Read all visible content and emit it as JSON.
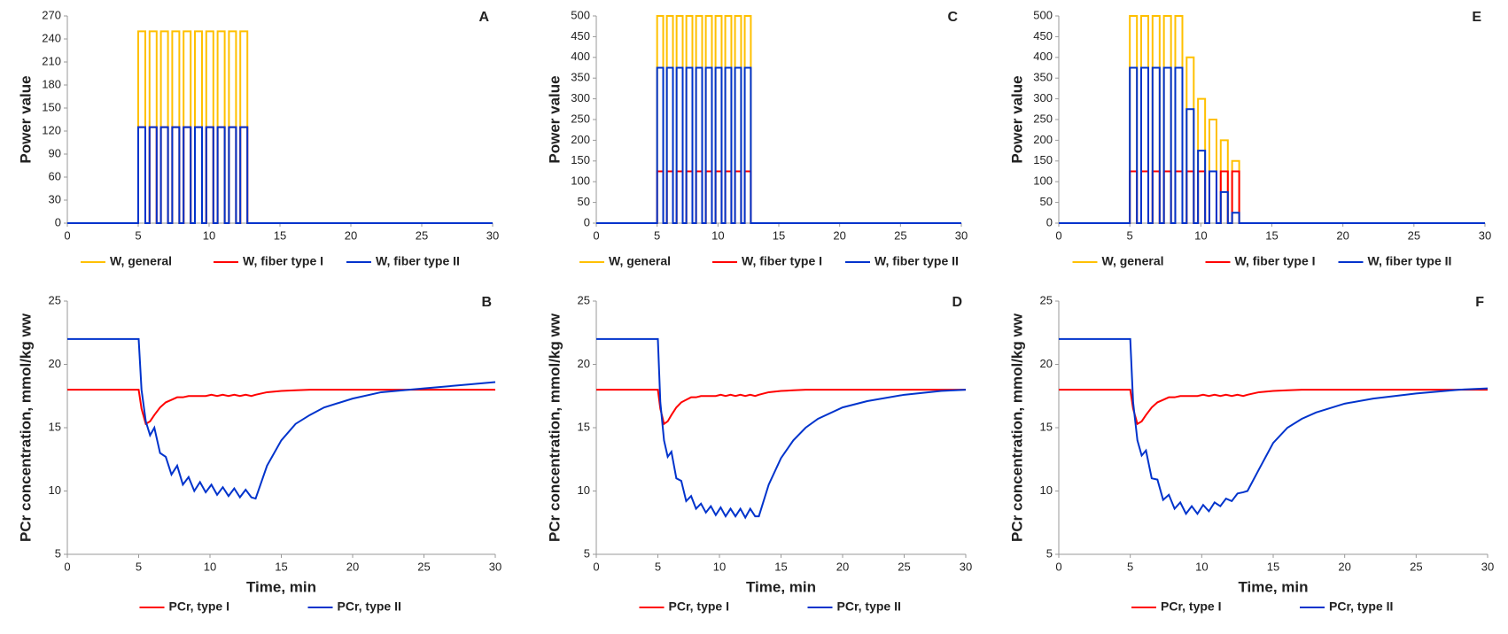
{
  "chart_data": [
    {
      "type": "line",
      "panel_label": "A",
      "ylabel": "Power value",
      "x": [
        0,
        5,
        5,
        5.5,
        5.5,
        5.8,
        5.8,
        6.3,
        6.3,
        6.6,
        6.6,
        7.1,
        7.1,
        7.4,
        7.4,
        7.9,
        7.9,
        8.2,
        8.2,
        8.7,
        8.7,
        9,
        9,
        9.5,
        9.5,
        9.8,
        9.8,
        10.3,
        10.3,
        10.6,
        10.6,
        11.1,
        11.1,
        11.4,
        11.4,
        11.9,
        11.9,
        12.2,
        12.2,
        12.7,
        12.7,
        30
      ],
      "series": [
        {
          "name": "W, general",
          "color": "#ffc000",
          "values": [
            0,
            0,
            250,
            250,
            0,
            0,
            250,
            250,
            0,
            0,
            250,
            250,
            0,
            0,
            250,
            250,
            0,
            0,
            250,
            250,
            0,
            0,
            250,
            250,
            0,
            0,
            250,
            250,
            0,
            0,
            250,
            250,
            0,
            0,
            250,
            250,
            0,
            0,
            250,
            250,
            0,
            0
          ]
        },
        {
          "name": "W, fiber type I",
          "color": "#ff0000",
          "values": [
            0,
            0,
            125,
            125,
            0,
            0,
            125,
            125,
            0,
            0,
            125,
            125,
            0,
            0,
            125,
            125,
            0,
            0,
            125,
            125,
            0,
            0,
            125,
            125,
            0,
            0,
            125,
            125,
            0,
            0,
            125,
            125,
            0,
            0,
            125,
            125,
            0,
            0,
            125,
            125,
            0,
            0
          ]
        },
        {
          "name": "W, fiber type II",
          "color": "#0033cc",
          "values": [
            0,
            0,
            125,
            125,
            0,
            0,
            125,
            125,
            0,
            0,
            125,
            125,
            0,
            0,
            125,
            125,
            0,
            0,
            125,
            125,
            0,
            0,
            125,
            125,
            0,
            0,
            125,
            125,
            0,
            0,
            125,
            125,
            0,
            0,
            125,
            125,
            0,
            0,
            125,
            125,
            0,
            0
          ]
        }
      ],
      "xlim": [
        0,
        30
      ],
      "ylim": [
        0,
        270
      ],
      "xticks": [
        0,
        5,
        10,
        15,
        20,
        25,
        30
      ],
      "yticks": [
        0,
        30,
        60,
        90,
        120,
        150,
        180,
        210,
        240,
        270
      ]
    },
    {
      "type": "line",
      "panel_label": "B",
      "ylabel": "PCr concentration, mmol/kg ww",
      "xlabel": "Time, min",
      "x": [
        0,
        5,
        5.2,
        5.5,
        5.8,
        6.1,
        6.5,
        6.9,
        7.3,
        7.7,
        8.1,
        8.5,
        8.9,
        9.3,
        9.7,
        10.1,
        10.5,
        10.9,
        11.3,
        11.7,
        12.1,
        12.5,
        12.9,
        13.2,
        14,
        15,
        16,
        17,
        18,
        20,
        22,
        25,
        28,
        30
      ],
      "series": [
        {
          "name": "PCr, type I",
          "color": "#ff0000",
          "values": [
            18,
            18,
            16.5,
            15.3,
            15.5,
            16,
            16.6,
            17,
            17.2,
            17.4,
            17.4,
            17.5,
            17.5,
            17.5,
            17.5,
            17.6,
            17.5,
            17.6,
            17.5,
            17.6,
            17.5,
            17.6,
            17.5,
            17.6,
            17.8,
            17.9,
            17.95,
            18,
            18,
            18,
            18,
            18,
            18,
            18
          ]
        },
        {
          "name": "PCr, type II",
          "color": "#0033cc",
          "values": [
            22,
            22,
            18,
            15.5,
            14.4,
            15,
            13,
            12.7,
            11.3,
            12,
            10.5,
            11.1,
            10,
            10.7,
            9.9,
            10.5,
            9.7,
            10.3,
            9.6,
            10.2,
            9.5,
            10.1,
            9.5,
            9.4,
            12,
            14,
            15.3,
            16,
            16.6,
            17.3,
            17.8,
            18.1,
            18.4,
            18.6
          ]
        }
      ],
      "xlim": [
        0,
        30
      ],
      "ylim": [
        5,
        25
      ],
      "xticks": [
        0,
        5,
        10,
        15,
        20,
        25,
        30
      ],
      "yticks": [
        5,
        10,
        15,
        20,
        25
      ]
    },
    {
      "type": "line",
      "panel_label": "C",
      "ylabel": "Power value",
      "x": [
        0,
        5,
        5,
        5.5,
        5.5,
        5.8,
        5.8,
        6.3,
        6.3,
        6.6,
        6.6,
        7.1,
        7.1,
        7.4,
        7.4,
        7.9,
        7.9,
        8.2,
        8.2,
        8.7,
        8.7,
        9,
        9,
        9.5,
        9.5,
        9.8,
        9.8,
        10.3,
        10.3,
        10.6,
        10.6,
        11.1,
        11.1,
        11.4,
        11.4,
        11.9,
        11.9,
        12.2,
        12.2,
        12.7,
        12.7,
        30
      ],
      "series": [
        {
          "name": "W, general",
          "color": "#ffc000",
          "values": [
            0,
            0,
            500,
            500,
            0,
            0,
            500,
            500,
            0,
            0,
            500,
            500,
            0,
            0,
            500,
            500,
            0,
            0,
            500,
            500,
            0,
            0,
            500,
            500,
            0,
            0,
            500,
            500,
            0,
            0,
            500,
            500,
            0,
            0,
            500,
            500,
            0,
            0,
            500,
            500,
            0,
            0
          ]
        },
        {
          "name": "W, fiber type I",
          "color": "#ff0000",
          "values": [
            0,
            0,
            125,
            125,
            0,
            0,
            125,
            125,
            0,
            0,
            125,
            125,
            0,
            0,
            125,
            125,
            0,
            0,
            125,
            125,
            0,
            0,
            125,
            125,
            0,
            0,
            125,
            125,
            0,
            0,
            125,
            125,
            0,
            0,
            125,
            125,
            0,
            0,
            125,
            125,
            0,
            0
          ]
        },
        {
          "name": "W, fiber type II",
          "color": "#0033cc",
          "values": [
            0,
            0,
            375,
            375,
            0,
            0,
            375,
            375,
            0,
            0,
            375,
            375,
            0,
            0,
            375,
            375,
            0,
            0,
            375,
            375,
            0,
            0,
            375,
            375,
            0,
            0,
            375,
            375,
            0,
            0,
            375,
            375,
            0,
            0,
            375,
            375,
            0,
            0,
            375,
            375,
            0,
            0
          ]
        }
      ],
      "xlim": [
        0,
        30
      ],
      "ylim": [
        0,
        500
      ],
      "xticks": [
        0,
        5,
        10,
        15,
        20,
        25,
        30
      ],
      "yticks": [
        0,
        50,
        100,
        150,
        200,
        250,
        300,
        350,
        400,
        450,
        500
      ]
    },
    {
      "type": "line",
      "panel_label": "D",
      "ylabel": "PCr concentration, mmol/kg ww",
      "xlabel": "Time, min",
      "x": [
        0,
        5,
        5.2,
        5.5,
        5.8,
        6.1,
        6.5,
        6.9,
        7.3,
        7.7,
        8.1,
        8.5,
        8.9,
        9.3,
        9.7,
        10.1,
        10.5,
        10.9,
        11.3,
        11.7,
        12.1,
        12.5,
        12.9,
        13.2,
        14,
        15,
        16,
        17,
        18,
        20,
        22,
        25,
        28,
        30
      ],
      "series": [
        {
          "name": "PCr, type I",
          "color": "#ff0000",
          "values": [
            18,
            18,
            16.5,
            15.3,
            15.5,
            16,
            16.6,
            17,
            17.2,
            17.4,
            17.4,
            17.5,
            17.5,
            17.5,
            17.5,
            17.6,
            17.5,
            17.6,
            17.5,
            17.6,
            17.5,
            17.6,
            17.5,
            17.6,
            17.8,
            17.9,
            17.95,
            18,
            18,
            18,
            18,
            18,
            18,
            18
          ]
        },
        {
          "name": "PCr, type II",
          "color": "#0033cc",
          "values": [
            22,
            22,
            17,
            14,
            12.7,
            13.1,
            11,
            10.8,
            9.2,
            9.6,
            8.6,
            9,
            8.3,
            8.8,
            8.1,
            8.7,
            8,
            8.6,
            8,
            8.6,
            7.9,
            8.6,
            8,
            8,
            10.5,
            12.6,
            14,
            15,
            15.7,
            16.6,
            17.1,
            17.6,
            17.9,
            18
          ]
        }
      ],
      "xlim": [
        0,
        30
      ],
      "ylim": [
        5,
        25
      ],
      "xticks": [
        0,
        5,
        10,
        15,
        20,
        25,
        30
      ],
      "yticks": [
        5,
        10,
        15,
        20,
        25
      ]
    },
    {
      "type": "line",
      "panel_label": "E",
      "ylabel": "Power value",
      "x": [
        0,
        5,
        5,
        5.5,
        5.5,
        5.8,
        5.8,
        6.3,
        6.3,
        6.6,
        6.6,
        7.1,
        7.1,
        7.4,
        7.4,
        7.9,
        7.9,
        8.2,
        8.2,
        8.7,
        8.7,
        9,
        9,
        9.5,
        9.5,
        9.8,
        9.8,
        10.3,
        10.3,
        10.6,
        10.6,
        11.1,
        11.1,
        11.4,
        11.4,
        11.9,
        11.9,
        12.2,
        12.2,
        12.7,
        12.7,
        30
      ],
      "series": [
        {
          "name": "W, general",
          "color": "#ffc000",
          "values": [
            0,
            0,
            500,
            500,
            0,
            0,
            500,
            500,
            0,
            0,
            500,
            500,
            0,
            0,
            500,
            500,
            0,
            0,
            500,
            500,
            0,
            0,
            400,
            400,
            0,
            0,
            300,
            300,
            0,
            0,
            250,
            250,
            0,
            0,
            200,
            200,
            0,
            0,
            150,
            150,
            0,
            0
          ]
        },
        {
          "name": "W, fiber type I",
          "color": "#ff0000",
          "values": [
            0,
            0,
            125,
            125,
            0,
            0,
            125,
            125,
            0,
            0,
            125,
            125,
            0,
            0,
            125,
            125,
            0,
            0,
            125,
            125,
            0,
            0,
            125,
            125,
            0,
            0,
            125,
            125,
            0,
            0,
            125,
            125,
            0,
            0,
            125,
            125,
            0,
            0,
            125,
            125,
            0,
            0
          ]
        },
        {
          "name": "W, fiber type II",
          "color": "#0033cc",
          "values": [
            0,
            0,
            375,
            375,
            0,
            0,
            375,
            375,
            0,
            0,
            375,
            375,
            0,
            0,
            375,
            375,
            0,
            0,
            375,
            375,
            0,
            0,
            275,
            275,
            0,
            0,
            175,
            175,
            0,
            0,
            125,
            125,
            0,
            0,
            75,
            75,
            0,
            0,
            25,
            25,
            0,
            0
          ]
        }
      ],
      "xlim": [
        0,
        30
      ],
      "ylim": [
        0,
        500
      ],
      "xticks": [
        0,
        5,
        10,
        15,
        20,
        25,
        30
      ],
      "yticks": [
        0,
        50,
        100,
        150,
        200,
        250,
        300,
        350,
        400,
        450,
        500
      ]
    },
    {
      "type": "line",
      "panel_label": "F",
      "ylabel": "PCr concentration, mmol/kg ww",
      "xlabel": "Time, min",
      "x": [
        0,
        5,
        5.2,
        5.5,
        5.8,
        6.1,
        6.5,
        6.9,
        7.3,
        7.7,
        8.1,
        8.5,
        8.9,
        9.3,
        9.7,
        10.1,
        10.5,
        10.9,
        11.3,
        11.7,
        12.1,
        12.5,
        12.9,
        13.2,
        14,
        15,
        16,
        17,
        18,
        20,
        22,
        25,
        28,
        30
      ],
      "series": [
        {
          "name": "PCr, type I",
          "color": "#ff0000",
          "values": [
            18,
            18,
            16.5,
            15.3,
            15.5,
            16,
            16.6,
            17,
            17.2,
            17.4,
            17.4,
            17.5,
            17.5,
            17.5,
            17.5,
            17.6,
            17.5,
            17.6,
            17.5,
            17.6,
            17.5,
            17.6,
            17.5,
            17.6,
            17.8,
            17.9,
            17.95,
            18,
            18,
            18,
            18,
            18,
            18,
            18
          ]
        },
        {
          "name": "PCr, type II",
          "color": "#0033cc",
          "values": [
            22,
            22,
            17,
            14,
            12.8,
            13.2,
            11,
            10.9,
            9.3,
            9.7,
            8.6,
            9.1,
            8.2,
            8.8,
            8.2,
            8.9,
            8.4,
            9.1,
            8.8,
            9.4,
            9.2,
            9.8,
            9.9,
            10,
            11.7,
            13.8,
            15,
            15.7,
            16.2,
            16.9,
            17.3,
            17.7,
            18,
            18.1
          ]
        }
      ],
      "xlim": [
        0,
        30
      ],
      "ylim": [
        5,
        25
      ],
      "xticks": [
        0,
        5,
        10,
        15,
        20,
        25,
        30
      ],
      "yticks": [
        5,
        10,
        15,
        20,
        25
      ]
    }
  ]
}
